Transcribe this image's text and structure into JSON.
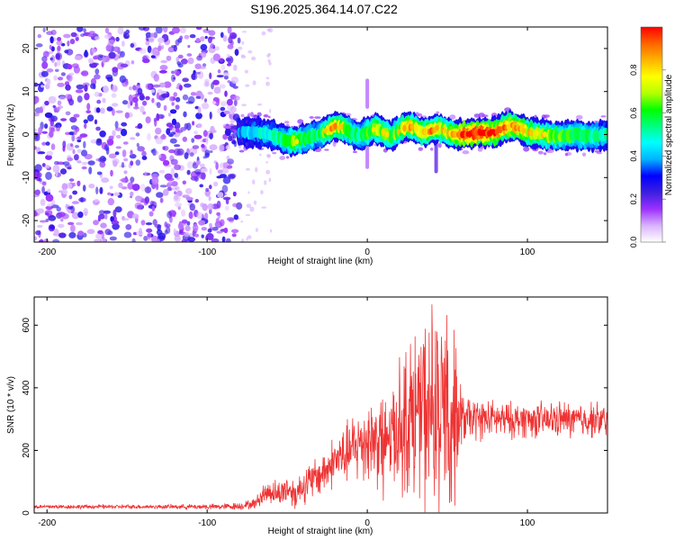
{
  "figure": {
    "title": "S196.2025.364.14.07.C22"
  },
  "chart_data": [
    {
      "type": "heatmap",
      "panel": "spectrogram",
      "xlabel": "Height of straight line (km)",
      "ylabel": "Frequency (Hz)",
      "xlim": [
        -208,
        150
      ],
      "ylim": [
        -25,
        25
      ],
      "xticks": [
        -200,
        -100,
        0,
        100
      ],
      "yticks": [
        -20,
        -10,
        0,
        10,
        20
      ],
      "colorbar": {
        "label": "Normalized spectral amplitude",
        "range": [
          0.0,
          1.0
        ],
        "ticks": [
          0.0,
          0.2,
          0.4,
          0.6,
          0.8
        ],
        "colors": [
          "#ffffff",
          "#d9b3ff",
          "#9b30ff",
          "#3c1fe0",
          "#0000ff",
          "#00b4ff",
          "#00ffff",
          "#00ff80",
          "#00ff00",
          "#b4ff00",
          "#ffff00",
          "#ffb400",
          "#ff6400",
          "#ff0000"
        ]
      },
      "noise_region_x": [
        -208,
        -80
      ],
      "signal_region_x": [
        -80,
        150
      ],
      "signal_ridge": {
        "x": [
          -80,
          -70,
          -60,
          -50,
          -45,
          -40,
          -30,
          -25,
          -20,
          -15,
          -10,
          -5,
          0,
          5,
          10,
          15,
          20,
          25,
          30,
          35,
          40,
          45,
          50,
          55,
          60,
          70,
          80,
          85,
          90,
          95,
          100,
          110,
          120,
          130,
          140,
          150
        ],
        "y": [
          0.5,
          0.5,
          0.0,
          -1.5,
          -1.5,
          -1.0,
          0.0,
          1.0,
          2.0,
          1.5,
          0.5,
          -0.5,
          0.5,
          1.5,
          0.5,
          -0.5,
          1.0,
          2.0,
          1.5,
          0.5,
          1.0,
          1.5,
          0.5,
          0.0,
          0.0,
          0.5,
          0.5,
          1.5,
          2.0,
          1.5,
          0.5,
          0.0,
          -0.5,
          0.0,
          -0.5,
          0.0
        ],
        "amplitude": [
          0.35,
          0.45,
          0.5,
          0.6,
          0.7,
          0.6,
          0.55,
          0.75,
          0.8,
          0.7,
          0.6,
          0.55,
          0.65,
          0.7,
          0.75,
          0.65,
          0.7,
          0.8,
          0.75,
          0.7,
          0.8,
          0.75,
          0.7,
          0.8,
          0.95,
          0.95,
          0.9,
          0.85,
          0.8,
          0.85,
          0.75,
          0.7,
          0.65,
          0.6,
          0.55,
          0.5
        ]
      }
    },
    {
      "type": "line",
      "panel": "snr",
      "xlabel": "Height of straight line (km)",
      "ylabel": "SNR (10 * v/v)",
      "xlim": [
        -208,
        150
      ],
      "ylim": [
        0,
        690
      ],
      "xticks": [
        -200,
        -100,
        0,
        100
      ],
      "yticks": [
        0,
        200,
        400,
        600
      ],
      "color": "#ee3333",
      "series": [
        {
          "name": "SNR",
          "x": [
            -208,
            -190,
            -170,
            -150,
            -130,
            -110,
            -90,
            -80,
            -70,
            -65,
            -60,
            -55,
            -50,
            -45,
            -40,
            -35,
            -30,
            -25,
            -20,
            -15,
            -10,
            -5,
            0,
            5,
            10,
            15,
            20,
            25,
            30,
            35,
            40,
            45,
            50,
            55,
            60,
            70,
            80,
            90,
            100,
            110,
            120,
            130,
            140,
            150
          ],
          "values": [
            20,
            20,
            20,
            20,
            20,
            20,
            20,
            22,
            30,
            60,
            70,
            60,
            80,
            60,
            90,
            100,
            120,
            140,
            170,
            180,
            200,
            220,
            240,
            230,
            250,
            260,
            280,
            300,
            320,
            330,
            300,
            280,
            300,
            290,
            300,
            300,
            300,
            295,
            300,
            295,
            300,
            295,
            300,
            290
          ],
          "spread": [
            8,
            8,
            8,
            8,
            8,
            10,
            12,
            15,
            20,
            40,
            50,
            50,
            60,
            60,
            70,
            80,
            80,
            90,
            100,
            110,
            130,
            150,
            170,
            180,
            200,
            220,
            250,
            300,
            330,
            350,
            380,
            400,
            420,
            300,
            90,
            80,
            70,
            70,
            70,
            70,
            70,
            70,
            70,
            70
          ]
        }
      ]
    }
  ]
}
